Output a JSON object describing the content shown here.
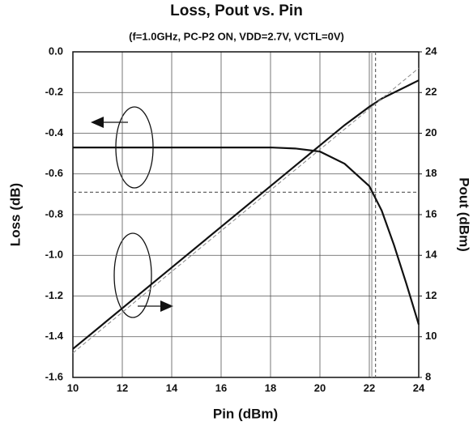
{
  "chart_data": {
    "type": "line",
    "title": "Loss, Pout vs. Pin",
    "subtitle": "(f=1.0GHz, PC-P2 ON, VDD=2.7V, VCTL=0V)",
    "x_label": "Pin (dBm)",
    "y_label": "Loss (dB)",
    "y2_label": "Pout (dBm)",
    "x": [
      10,
      12,
      14,
      16,
      18,
      19,
      20,
      21,
      22,
      22.5,
      23,
      23.5,
      24
    ],
    "series": [
      {
        "color": "#111111",
        "style": "solid",
        "values": [
          -0.47,
          -0.47,
          -0.47,
          -0.47,
          -0.47,
          -0.475,
          -0.49,
          -0.55,
          -0.66,
          -0.78,
          -0.95,
          -1.14,
          -1.34
        ]
      },
      {
        "color": "#111111",
        "style": "solid",
        "axis": "y2",
        "values": [
          9.4,
          11.4,
          13.4,
          15.4,
          17.4,
          18.4,
          19.4,
          20.4,
          21.3,
          21.7,
          22.0,
          22.3,
          22.6
        ]
      },
      {
        "color": "#888888",
        "style": "dashed",
        "axis": "y2",
        "values": [
          9.2,
          11.2,
          13.2,
          15.2,
          17.2,
          18.2,
          19.2,
          20.2,
          21.2,
          21.7,
          22.2,
          22.7,
          23.2
        ]
      }
    ],
    "reference_lines": [
      {
        "axis": "x",
        "value": 22.1,
        "style": "solid",
        "color": "#999999"
      },
      {
        "axis": "x",
        "value": 22.25,
        "style": "dashed",
        "color": "#666666"
      },
      {
        "axis": "y",
        "value": -0.69,
        "style": "dashed",
        "color": "#666666"
      }
    ],
    "xlim": [
      10,
      24
    ],
    "xticks": [
      10,
      12,
      14,
      16,
      18,
      20,
      22,
      24
    ],
    "ylim": [
      -1.6,
      0
    ],
    "yticks": [
      {
        "value": -1.6,
        "label": "-1.6"
      },
      -1.4,
      -1.2,
      {
        "value": -1.0,
        "label": "-1.0"
      },
      -0.8,
      -0.6,
      -0.4,
      -0.2,
      {
        "value": 0,
        "label": "0.0"
      }
    ],
    "y2lim": [
      8,
      24
    ],
    "y2ticks": [
      8,
      10,
      12,
      14,
      16,
      18,
      20,
      22,
      24
    ],
    "grid": true
  }
}
